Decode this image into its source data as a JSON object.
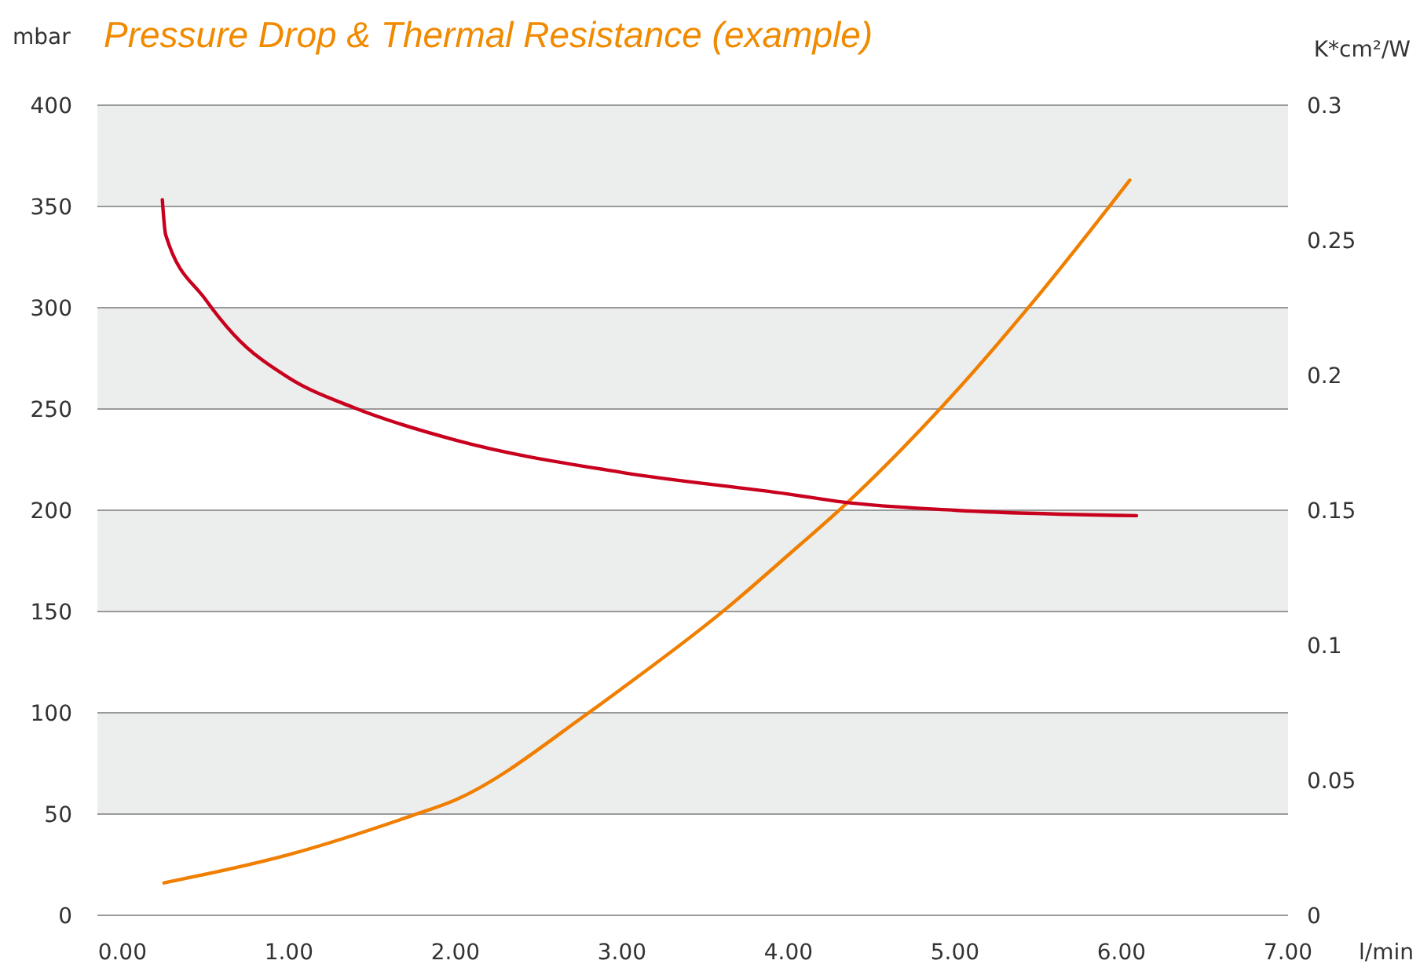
{
  "chart_data": {
    "type": "line",
    "title": "Pressure Drop & Thermal Resistance (example)",
    "xlabel": "l/min",
    "ylabel": "mbar",
    "y2label": "K*cm²/W",
    "xlim": [
      -0.15,
      7
    ],
    "xticks": [
      {
        "value": 0,
        "label": "0.00"
      },
      {
        "value": 1,
        "label": "1.00"
      },
      {
        "value": 2,
        "label": "2.00"
      },
      {
        "value": 3,
        "label": "3.00"
      },
      {
        "value": 4,
        "label": "4.00"
      },
      {
        "value": 5,
        "label": "5.00"
      },
      {
        "value": 6,
        "label": "6.00"
      },
      {
        "value": 7,
        "label": "7.00"
      }
    ],
    "ylim": [
      0,
      400
    ],
    "yticks": [
      0,
      50,
      100,
      150,
      200,
      250,
      300,
      350,
      400
    ],
    "y2lim": [
      0,
      0.3
    ],
    "y2ticks": [
      0,
      0.05,
      0.1,
      0.15,
      0.2,
      0.25,
      0.3
    ],
    "grid": "y",
    "line_style": "solid",
    "series": [
      {
        "color": "#f07f00",
        "x": [
          0.25,
          1,
          1.73,
          2,
          2.8,
          3,
          3.62,
          4,
          4.33,
          4.92,
          5.45,
          6.05
        ],
        "values": [
          16,
          30,
          49,
          57,
          100,
          112,
          151,
          178,
          202,
          251,
          301,
          363
        ]
      },
      {
        "color": "#c8001e",
        "axis": "y2",
        "x": [
          0.24,
          0.26,
          0.5,
          0.67,
          1,
          1.39,
          2,
          3,
          4,
          4.33,
          5,
          6.09
        ],
        "values": [
          0.265,
          0.252,
          0.228,
          0.215,
          0.199,
          0.188,
          0.176,
          0.164,
          0.156,
          0.153,
          0.15,
          0.148
        ]
      }
    ]
  }
}
